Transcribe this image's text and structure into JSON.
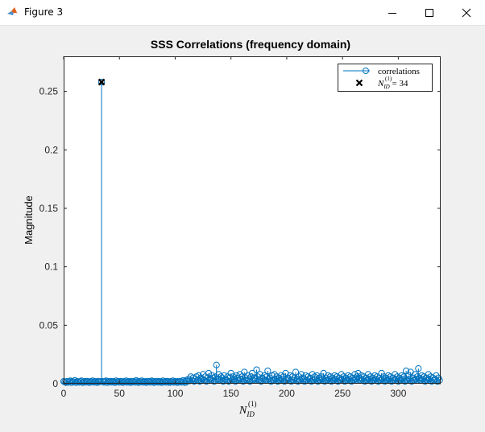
{
  "window": {
    "title": "Figure 3",
    "controls": [
      "minimize",
      "maximize",
      "close"
    ],
    "icon": "matlab-icon"
  },
  "chart_data": {
    "type": "stem",
    "title": "SSS Correlations (frequency domain)",
    "ylabel": "Magnitude",
    "xlabel": "N_{ID}^{(1)}",
    "xlabel_parts": {
      "base": "N",
      "sub": "ID",
      "sup": "(1)"
    },
    "xlim": [
      0,
      338
    ],
    "ylim": [
      0,
      0.28
    ],
    "xticks": [
      0,
      50,
      100,
      150,
      200,
      250,
      300
    ],
    "yticks": [
      0,
      0.05,
      0.1,
      0.15,
      0.2,
      0.25
    ],
    "ytick_labels": [
      "0",
      "0.05",
      "0.1",
      "0.15",
      "0.2",
      "0.25"
    ],
    "colors": {
      "series": "#0072bd",
      "peak": "#000000"
    },
    "legend": {
      "location": "top-right",
      "entries": [
        {
          "label": "correlations",
          "marker": "circle-line"
        },
        {
          "label_parts": {
            "base": "N",
            "sub": "ID",
            "sup": "(1)",
            "rest": " = 34"
          },
          "marker": "x"
        }
      ]
    },
    "series": [
      {
        "name": "correlations",
        "x_start": 0,
        "values": [
          0.002,
          0.0015,
          0.001,
          0.002,
          0.0012,
          0.0018,
          0.0025,
          0.001,
          0.002,
          0.0015,
          0.0028,
          0.001,
          0.002,
          0.0018,
          0.0012,
          0.002,
          0.0025,
          0.001,
          0.0015,
          0.002,
          0.0012,
          0.0022,
          0.0018,
          0.001,
          0.002,
          0.0015,
          0.0025,
          0.0012,
          0.002,
          0.0018,
          0.001,
          0.0022,
          0.0015,
          0.002,
          0.258,
          0.002,
          0.0012,
          0.0018,
          0.0025,
          0.001,
          0.002,
          0.0015,
          0.0022,
          0.0012,
          0.002,
          0.0018,
          0.001,
          0.0025,
          0.0015,
          0.002,
          0.0012,
          0.0022,
          0.0018,
          0.001,
          0.002,
          0.0015,
          0.0025,
          0.0012,
          0.002,
          0.0018,
          0.001,
          0.0022,
          0.0015,
          0.002,
          0.0012,
          0.0028,
          0.0018,
          0.001,
          0.002,
          0.0015,
          0.0025,
          0.0012,
          0.002,
          0.0018,
          0.001,
          0.0022,
          0.0015,
          0.002,
          0.0012,
          0.0025,
          0.0018,
          0.001,
          0.002,
          0.0015,
          0.0022,
          0.0012,
          0.002,
          0.0018,
          0.001,
          0.0025,
          0.0015,
          0.002,
          0.0012,
          0.0022,
          0.0018,
          0.001,
          0.002,
          0.0015,
          0.0025,
          0.0012,
          0.002,
          0.0018,
          0.001,
          0.0022,
          0.0015,
          0.002,
          0.0012,
          0.0028,
          0.0018,
          0.001,
          0.003,
          0.002,
          0.004,
          0.0025,
          0.006,
          0.003,
          0.005,
          0.002,
          0.004,
          0.006,
          0.003,
          0.007,
          0.002,
          0.005,
          0.004,
          0.008,
          0.003,
          0.006,
          0.002,
          0.005,
          0.009,
          0.004,
          0.003,
          0.007,
          0.005,
          0.002,
          0.006,
          0.016,
          0.004,
          0.008,
          0.003,
          0.006,
          0.005,
          0.002,
          0.007,
          0.004,
          0.003,
          0.006,
          0.002,
          0.005,
          0.009,
          0.003,
          0.006,
          0.004,
          0.002,
          0.007,
          0.005,
          0.003,
          0.008,
          0.004,
          0.006,
          0.002,
          0.01,
          0.005,
          0.003,
          0.007,
          0.004,
          0.002,
          0.006,
          0.009,
          0.003,
          0.005,
          0.004,
          0.012,
          0.006,
          0.003,
          0.008,
          0.002,
          0.005,
          0.004,
          0.007,
          0.003,
          0.006,
          0.011,
          0.004,
          0.005,
          0.002,
          0.007,
          0.003,
          0.008,
          0.004,
          0.006,
          0.002,
          0.005,
          0.003,
          0.007,
          0.004,
          0.006,
          0.002,
          0.009,
          0.003,
          0.005,
          0.004,
          0.007,
          0.002,
          0.006,
          0.003,
          0.005,
          0.01,
          0.004,
          0.002,
          0.006,
          0.003,
          0.008,
          0.005,
          0.004,
          0.002,
          0.007,
          0.003,
          0.006,
          0.004,
          0.005,
          0.002,
          0.008,
          0.003,
          0.006,
          0.004,
          0.007,
          0.002,
          0.005,
          0.003,
          0.006,
          0.004,
          0.009,
          0.002,
          0.005,
          0.003,
          0.007,
          0.004,
          0.006,
          0.002,
          0.005,
          0.003,
          0.007,
          0.004,
          0.006,
          0.002,
          0.005,
          0.003,
          0.008,
          0.004,
          0.006,
          0.002,
          0.005,
          0.003,
          0.007,
          0.004,
          0.006,
          0.002,
          0.005,
          0.003,
          0.008,
          0.004,
          0.006,
          0.009,
          0.005,
          0.003,
          0.007,
          0.004,
          0.006,
          0.002,
          0.005,
          0.003,
          0.008,
          0.004,
          0.006,
          0.002,
          0.005,
          0.003,
          0.007,
          0.004,
          0.006,
          0.002,
          0.005,
          0.003,
          0.009,
          0.004,
          0.006,
          0.002,
          0.005,
          0.003,
          0.007,
          0.004,
          0.006,
          0.002,
          0.005,
          0.003,
          0.008,
          0.004,
          0.006,
          0.002,
          0.005,
          0.003,
          0.007,
          0.004,
          0.006,
          0.002,
          0.011,
          0.003,
          0.007,
          0.004,
          0.01,
          0.002,
          0.005,
          0.003,
          0.008,
          0.004,
          0.006,
          0.013,
          0.005,
          0.003,
          0.007,
          0.004,
          0.006,
          0.002,
          0.005,
          0.003,
          0.008,
          0.004,
          0.006,
          0.002,
          0.005,
          0.003,
          0.004,
          0.007,
          0.002,
          0.005,
          0.003
        ]
      },
      {
        "name": "peak",
        "x": [
          34
        ],
        "y": [
          0.258
        ]
      }
    ]
  }
}
